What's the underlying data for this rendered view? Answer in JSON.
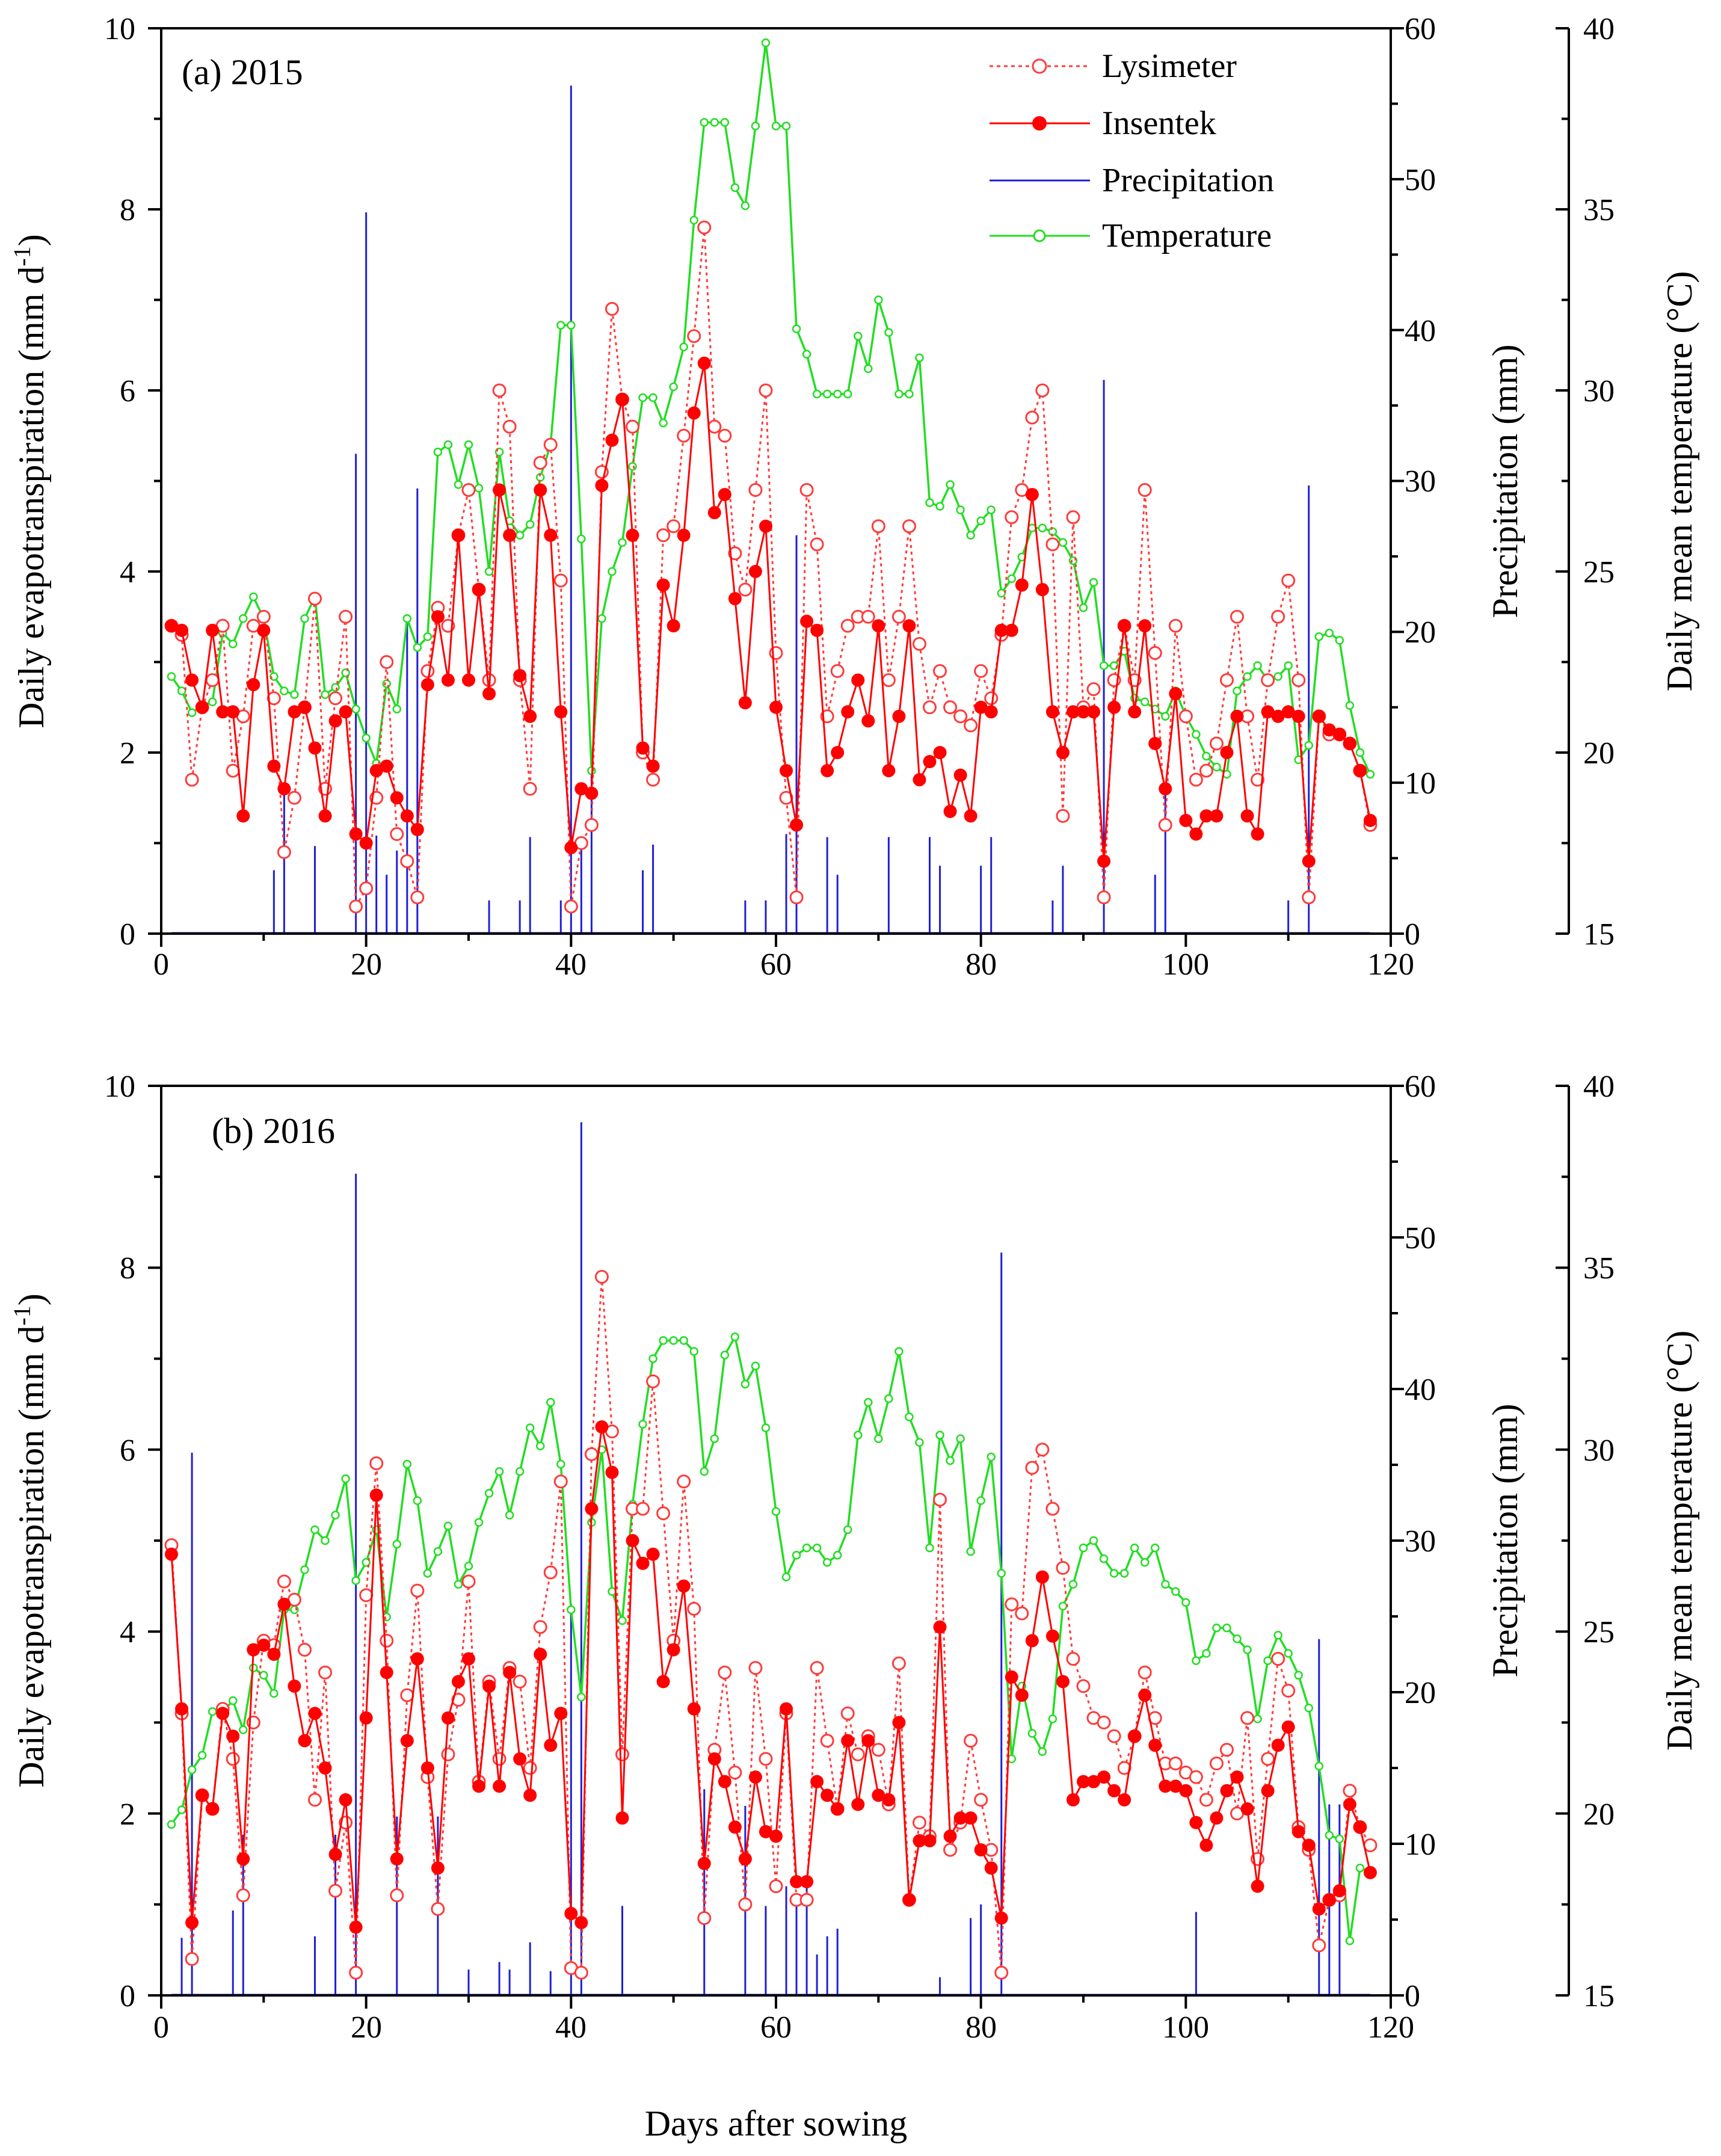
{
  "colors": {
    "lysimeter": "#ff3b3b",
    "insentek": "#ff0000",
    "precipitation": "#1f1fd6",
    "temperature": "#22dd22",
    "axis": "#000000"
  },
  "chart_data": [
    {
      "type": "line",
      "panel_label": "(a)",
      "panel_year": "2015",
      "xlabel": "Days after sowing",
      "xlim": [
        0,
        120
      ],
      "xticks": [
        "0",
        "20",
        "40",
        "60",
        "80",
        "100",
        "120"
      ],
      "ylabel": "Daily evapotranspiration (mm d⁻¹)",
      "ylim": [
        0,
        10
      ],
      "yticks": [
        "0",
        "2",
        "4",
        "6",
        "8",
        "10"
      ],
      "y2label": "Precipitation (mm)",
      "y2lim": [
        0,
        60
      ],
      "y2ticks": [
        "0",
        "10",
        "20",
        "30",
        "40",
        "50",
        "60"
      ],
      "y3label": "Daily mean temperature (°C)",
      "y3lim": [
        15,
        40
      ],
      "y3ticks": [
        "15",
        "20",
        "25",
        "30",
        "35",
        "40"
      ],
      "legend": [
        {
          "key": "lysimeter",
          "label": "Lysimeter"
        },
        {
          "key": "insentek",
          "label": "Insentek"
        },
        {
          "key": "precipitation",
          "label": "Precipitation"
        },
        {
          "key": "temperature",
          "label": "Temperature"
        }
      ],
      "series": [
        {
          "name": "Lysimeter",
          "key": "lysimeter",
          "axis": "et",
          "values": [
            3.4,
            3.3,
            1.7,
            2.5,
            2.8,
            3.4,
            1.8,
            2.4,
            3.4,
            3.5,
            2.6,
            0.9,
            1.5,
            2.5,
            3.7,
            1.6,
            2.6,
            3.5,
            0.3,
            0.5,
            1.5,
            3.0,
            1.1,
            0.8,
            0.4,
            2.9,
            3.6,
            3.4,
            4.4,
            4.9,
            3.8,
            2.8,
            6.0,
            5.6,
            2.8,
            1.6,
            5.2,
            5.4,
            3.9,
            0.3,
            1.0,
            1.2,
            5.1,
            6.9,
            5.9,
            5.6,
            2.0,
            1.7,
            4.4,
            4.5,
            5.5,
            6.6,
            7.8,
            5.6,
            5.5,
            4.2,
            3.8,
            4.9,
            6.0,
            3.1,
            1.5,
            0.4,
            4.9,
            4.3,
            2.4,
            2.9,
            3.4,
            3.5,
            3.5,
            4.5,
            2.8,
            3.5,
            4.5,
            3.2,
            2.5,
            2.9,
            2.5,
            2.4,
            2.3,
            2.9,
            2.6,
            3.3,
            4.6,
            4.9,
            5.7,
            6.0,
            4.3,
            1.3,
            4.6,
            2.5,
            2.7,
            0.4,
            2.8,
            3.4,
            2.8,
            4.9,
            3.1,
            1.2,
            3.4,
            2.4,
            1.7,
            1.8,
            2.1,
            2.8,
            3.5,
            2.4,
            1.7,
            2.8,
            3.5,
            3.9,
            2.8,
            0.4,
            2.4,
            2.2,
            2.2,
            2.1,
            1.8,
            1.2
          ]
        },
        {
          "name": "Insentek",
          "key": "insentek",
          "axis": "et",
          "values": [
            3.4,
            3.35,
            2.8,
            2.5,
            3.35,
            2.45,
            2.45,
            1.3,
            2.75,
            3.35,
            1.85,
            1.6,
            2.45,
            2.5,
            2.05,
            1.3,
            2.35,
            2.45,
            1.1,
            1.0,
            1.8,
            1.85,
            1.5,
            1.3,
            1.15,
            2.75,
            3.5,
            2.8,
            4.4,
            2.8,
            3.8,
            2.65,
            4.9,
            4.4,
            2.85,
            2.4,
            4.9,
            4.4,
            2.45,
            0.95,
            1.6,
            1.55,
            4.95,
            5.45,
            5.9,
            4.4,
            2.05,
            1.85,
            3.85,
            3.4,
            4.4,
            5.75,
            6.3,
            4.65,
            4.85,
            3.7,
            2.55,
            4.0,
            4.5,
            2.5,
            1.8,
            1.2,
            3.45,
            3.35,
            1.8,
            2.0,
            2.45,
            2.8,
            2.35,
            3.4,
            1.8,
            2.4,
            3.4,
            1.7,
            1.9,
            2.0,
            1.35,
            1.75,
            1.3,
            2.5,
            2.45,
            3.35,
            3.35,
            3.85,
            4.85,
            3.8,
            2.45,
            2.0,
            2.45,
            2.45,
            2.45,
            0.8,
            2.5,
            3.4,
            2.45,
            3.4,
            2.1,
            1.6,
            2.65,
            1.25,
            1.1,
            1.3,
            1.3,
            2.0,
            2.4,
            1.3,
            1.1,
            2.45,
            2.4,
            2.45,
            2.4,
            0.8,
            2.4,
            2.25,
            2.2,
            2.1,
            1.8,
            1.25
          ]
        },
        {
          "name": "Precipitation",
          "key": "precipitation",
          "axis": "precip",
          "x": [
            11,
            12,
            15,
            19,
            20,
            21,
            22,
            23,
            24,
            25,
            32,
            35,
            36,
            39,
            40,
            41,
            42,
            47,
            48,
            57,
            59,
            61,
            62,
            65,
            66,
            71,
            75,
            76,
            80,
            81,
            87,
            88,
            92,
            97,
            98,
            110,
            112
          ],
          "values": [
            4.2,
            9.8,
            5.8,
            31.8,
            47.8,
            6.5,
            3.9,
            5.5,
            20.8,
            29.5,
            2.2,
            2.2,
            6.4,
            2.2,
            56.2,
            6.2,
            11.2,
            4.2,
            5.9,
            2.2,
            2.2,
            6.6,
            26.4,
            6.4,
            3.9,
            6.4,
            6.4,
            4.5,
            4.5,
            6.4,
            2.2,
            4.5,
            36.7,
            3.9,
            9.7,
            2.2,
            29.7
          ]
        },
        {
          "name": "Temperature",
          "key": "temperature",
          "axis": "temp",
          "values": [
            22.1,
            21.7,
            21.1,
            21.3,
            21.4,
            23.3,
            23.0,
            23.7,
            24.3,
            23.7,
            22.1,
            21.7,
            21.6,
            23.7,
            24.3,
            21.6,
            21.8,
            22.2,
            21.2,
            20.4,
            19.7,
            21.9,
            21.2,
            23.7,
            22.9,
            23.2,
            28.3,
            28.5,
            27.4,
            28.5,
            27.3,
            25.0,
            28.3,
            26.4,
            26.0,
            26.3,
            27.6,
            28.5,
            31.8,
            31.8,
            25.9,
            19.5,
            23.7,
            25.0,
            25.8,
            27.9,
            29.8,
            29.8,
            29.1,
            30.1,
            31.2,
            34.7,
            37.4,
            37.4,
            37.4,
            35.6,
            35.1,
            37.3,
            39.6,
            37.3,
            37.3,
            31.7,
            31.0,
            29.9,
            29.9,
            29.9,
            29.9,
            31.5,
            30.6,
            32.5,
            31.6,
            29.9,
            29.9,
            30.9,
            26.9,
            26.8,
            27.4,
            26.7,
            26.0,
            26.4,
            26.7,
            24.4,
            24.8,
            25.4,
            26.2,
            26.2,
            26.1,
            25.8,
            25.3,
            24.0,
            24.7,
            22.4,
            22.4,
            22.8,
            21.5,
            21.4,
            21.2,
            21.0,
            21.7,
            21.0,
            20.5,
            19.9,
            19.6,
            19.4,
            21.7,
            22.1,
            22.4,
            22.0,
            22.1,
            22.4,
            19.8,
            20.2,
            23.2,
            23.3,
            23.1,
            21.3,
            20.0,
            19.4
          ]
        }
      ]
    },
    {
      "type": "line",
      "panel_label": "(b)",
      "panel_year": "2016",
      "xlabel": "Days after sowing",
      "xlim": [
        0,
        120
      ],
      "xticks": [
        "0",
        "20",
        "40",
        "60",
        "80",
        "100",
        "120"
      ],
      "ylabel": "Daily evapotranspiration (mm d⁻¹)",
      "ylim": [
        0,
        10
      ],
      "yticks": [
        "0",
        "2",
        "4",
        "6",
        "8",
        "10"
      ],
      "y2label": "Precipitation (mm)",
      "y2lim": [
        0,
        60
      ],
      "y2ticks": [
        "0",
        "10",
        "20",
        "30",
        "40",
        "50",
        "60"
      ],
      "y3label": "Daily mean temperature (°C)",
      "y3lim": [
        15,
        40
      ],
      "y3ticks": [
        "15",
        "20",
        "25",
        "30",
        "35",
        "40"
      ],
      "series": [
        {
          "name": "Lysimeter",
          "key": "lysimeter",
          "axis": "et",
          "values": [
            4.95,
            3.1,
            0.4,
            2.2,
            2.05,
            3.15,
            2.6,
            1.1,
            3.0,
            3.9,
            3.85,
            4.55,
            4.35,
            3.8,
            2.15,
            3.55,
            1.15,
            1.9,
            0.25,
            4.4,
            5.85,
            3.9,
            1.1,
            3.3,
            4.45,
            2.4,
            0.95,
            2.65,
            3.25,
            4.55,
            2.35,
            3.45,
            2.6,
            3.6,
            3.45,
            2.5,
            4.05,
            4.65,
            5.65,
            0.3,
            0.25,
            5.95,
            7.9,
            6.2,
            2.65,
            5.35,
            5.35,
            6.75,
            5.3,
            3.9,
            5.65,
            4.25,
            0.85,
            2.7,
            3.55,
            2.45,
            1.0,
            3.6,
            2.6,
            1.2,
            3.1,
            1.05,
            1.05,
            3.6,
            2.8,
            2.05,
            3.1,
            2.65,
            2.85,
            2.7,
            2.1,
            3.65,
            1.05,
            1.9,
            1.75,
            5.45,
            1.6,
            1.9,
            2.8,
            2.15,
            1.6,
            0.25,
            4.3,
            4.2,
            5.8,
            6.0,
            5.35,
            4.7,
            3.7,
            3.4,
            3.05,
            3.0,
            2.85,
            2.5,
            2.85,
            3.55,
            3.05,
            2.55,
            2.55,
            2.45,
            2.4,
            2.15,
            2.55,
            2.7,
            2.0,
            3.05,
            1.5,
            2.6,
            3.7,
            3.35,
            1.85,
            1.6,
            0.55,
            1.05,
            1.1,
            2.25,
            1.85,
            1.65
          ]
        },
        {
          "name": "Insentek",
          "key": "insentek",
          "axis": "et",
          "values": [
            4.85,
            3.15,
            0.8,
            2.2,
            2.05,
            3.1,
            2.85,
            1.5,
            3.8,
            3.85,
            3.75,
            4.3,
            3.4,
            2.8,
            3.1,
            2.5,
            1.55,
            2.15,
            0.75,
            3.05,
            5.5,
            3.55,
            1.5,
            2.8,
            3.7,
            2.5,
            1.4,
            3.05,
            3.45,
            3.7,
            2.3,
            3.4,
            2.3,
            3.55,
            2.6,
            2.2,
            3.75,
            2.75,
            3.1,
            0.9,
            0.8,
            5.35,
            6.25,
            5.75,
            1.95,
            5.0,
            4.75,
            4.85,
            3.45,
            3.8,
            4.5,
            3.15,
            1.45,
            2.6,
            2.35,
            1.85,
            1.5,
            2.4,
            1.8,
            1.75,
            3.15,
            1.25,
            1.25,
            2.35,
            2.2,
            2.05,
            2.8,
            2.1,
            2.8,
            2.2,
            2.15,
            3.0,
            1.05,
            1.7,
            1.7,
            4.05,
            1.75,
            1.95,
            1.95,
            1.6,
            1.4,
            0.85,
            3.5,
            3.3,
            3.9,
            4.6,
            3.95,
            3.45,
            2.15,
            2.35,
            2.35,
            2.4,
            2.25,
            2.15,
            2.85,
            3.3,
            2.75,
            2.3,
            2.3,
            2.25,
            1.9,
            1.65,
            1.95,
            2.25,
            2.4,
            2.05,
            1.2,
            2.25,
            2.75,
            2.95,
            1.8,
            1.65,
            0.95,
            1.05,
            1.15,
            2.1,
            1.85,
            1.35
          ]
        },
        {
          "name": "Precipitation",
          "key": "precipitation",
          "axis": "precip",
          "x": [
            2,
            3,
            7,
            8,
            15,
            17,
            19,
            23,
            27,
            30,
            33,
            34,
            36,
            38,
            40,
            41,
            45,
            53,
            57,
            59,
            61,
            62,
            63,
            64,
            65,
            66,
            76,
            79,
            80,
            82,
            101,
            113,
            114,
            115
          ],
          "values": [
            3.8,
            35.8,
            5.6,
            10.6,
            3.9,
            10.6,
            54.2,
            11.8,
            11.8,
            1.7,
            2.2,
            1.7,
            3.5,
            1.6,
            25.8,
            57.6,
            5.9,
            13.6,
            12.5,
            5.9,
            7.2,
            6.3,
            7.8,
            2.7,
            3.9,
            4.4,
            1.2,
            5.1,
            6.0,
            49.0,
            5.5,
            23.5,
            12.6,
            12.6
          ]
        },
        {
          "name": "Temperature",
          "key": "temperature",
          "axis": "temp",
          "values": [
            19.7,
            20.1,
            21.2,
            21.6,
            22.8,
            22.8,
            23.1,
            22.3,
            24.0,
            23.8,
            23.3,
            25.6,
            25.6,
            26.7,
            27.8,
            27.5,
            28.2,
            29.2,
            26.4,
            26.9,
            27.8,
            25.4,
            27.4,
            29.6,
            28.6,
            26.6,
            27.2,
            27.9,
            26.3,
            26.8,
            28.0,
            28.8,
            29.4,
            28.2,
            29.4,
            30.6,
            30.1,
            31.3,
            29.6,
            25.6,
            23.2,
            28.0,
            30.0,
            26.1,
            25.3,
            28.5,
            30.7,
            32.5,
            33.0,
            33.0,
            33.0,
            32.7,
            29.4,
            30.3,
            32.6,
            33.1,
            31.8,
            32.3,
            30.6,
            28.3,
            26.5,
            27.1,
            27.3,
            27.3,
            26.9,
            27.1,
            27.8,
            30.4,
            31.3,
            30.3,
            31.4,
            32.7,
            30.9,
            30.2,
            27.3,
            30.4,
            29.7,
            30.3,
            27.2,
            28.6,
            29.8,
            26.6,
            21.5,
            23.5,
            22.2,
            21.7,
            22.6,
            25.7,
            26.3,
            27.3,
            27.5,
            27.0,
            26.6,
            26.6,
            27.3,
            26.9,
            27.3,
            26.3,
            26.1,
            25.8,
            24.2,
            24.4,
            25.1,
            25.1,
            24.8,
            24.5,
            22.6,
            24.2,
            24.9,
            24.4,
            23.8,
            22.9,
            21.3,
            19.4,
            19.3,
            16.5,
            18.5,
            18.4
          ]
        }
      ]
    }
  ]
}
